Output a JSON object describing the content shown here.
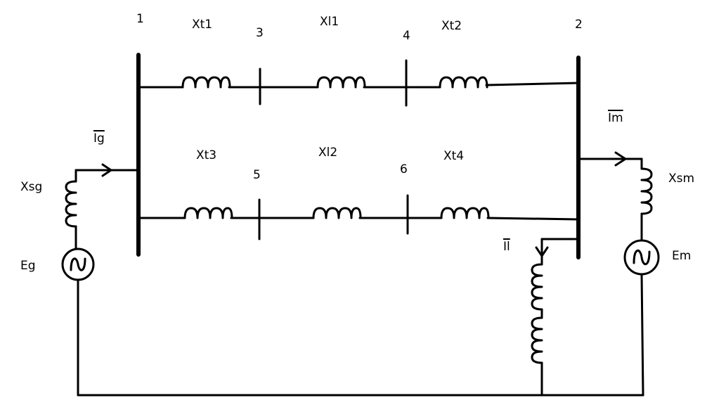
{
  "buses": {
    "b1": "1",
    "b2": "2",
    "b3": "3",
    "b4": "4",
    "b5": "5",
    "b6": "6"
  },
  "reactances": {
    "xt1": "Xt1",
    "xl1": "Xl1",
    "xt2": "Xt2",
    "xt3": "Xt3",
    "xl2": "Xl2",
    "xt4": "Xt4",
    "xsg": "Xsg",
    "xsm": "Xsm"
  },
  "sources": {
    "eg": "Eg",
    "em": "Em"
  },
  "currents": {
    "ig": "Ig",
    "im": "Im",
    "il": "Il"
  },
  "colors": {
    "line": "#000000",
    "background": "#ffffff"
  }
}
